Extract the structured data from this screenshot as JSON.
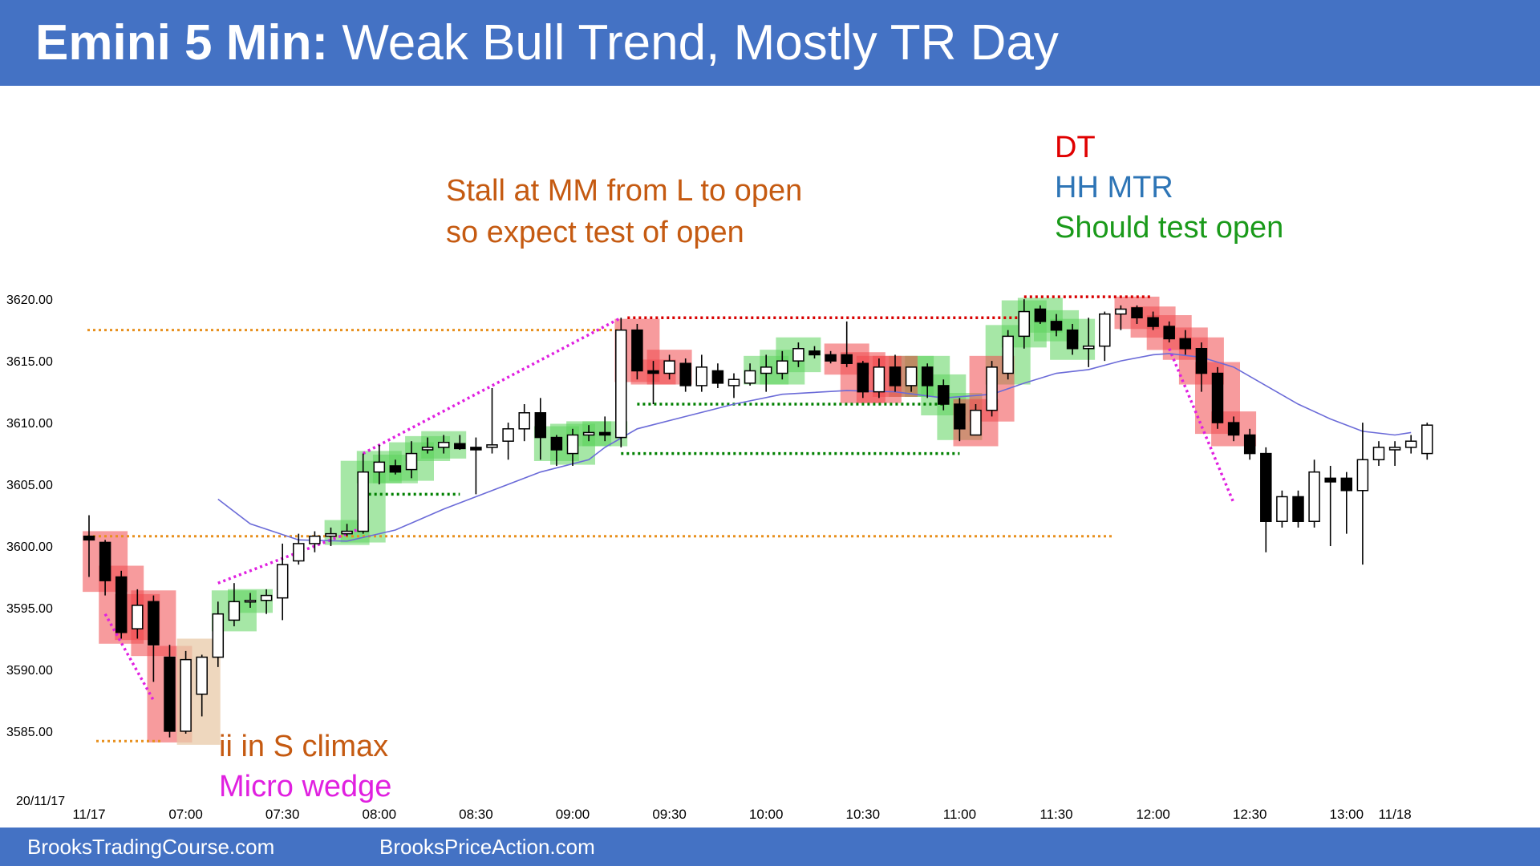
{
  "title": {
    "bold": "Emini 5 Min:",
    "rest": "Weak Bull Trend, Mostly TR Day"
  },
  "footer": {
    "left": "BrooksTradingCourse.com",
    "right": "BrooksPriceAction.com"
  },
  "colors": {
    "banner": "#4472C4",
    "bull_highlight": "#5CD35C",
    "bear_highlight": "#F0484C",
    "ema": "#6B6BD8",
    "level_line": "#E8901E",
    "trend_line": "#E020E0",
    "resistance": "#D80000",
    "support": "#008000"
  },
  "annotations": {
    "stall_line1": "Stall at MM from L to open",
    "stall_line2": "so expect test of open",
    "dt": "DT",
    "hh_mtr": "HH MTR",
    "should_test": "Should test open",
    "ii": "ii in S climax",
    "micro_wedge": "Micro wedge"
  },
  "chart_data": {
    "type": "candlestick",
    "symbol": "Emini",
    "timeframe": "5 Min",
    "date_label": "20/11/17",
    "ylim": [
      3583.5,
      3623.0
    ],
    "y_ticks": [
      "3585.00",
      "3590.00",
      "3595.00",
      "3600.00",
      "3605.00",
      "3610.00",
      "3615.00",
      "3620.00"
    ],
    "x_tick_labels": [
      "11/17",
      "07:00",
      "07:30",
      "08:00",
      "08:30",
      "09:00",
      "09:30",
      "10:00",
      "10:30",
      "11:00",
      "11:30",
      "12:00",
      "12:30",
      "13:00",
      "11/18"
    ],
    "x_tick_bars": [
      0,
      6,
      12,
      18,
      24,
      30,
      36,
      42,
      48,
      54,
      60,
      66,
      72,
      78,
      81
    ],
    "bars": [
      {
        "o": 3600.8,
        "h": 3602.5,
        "l": 3597.5,
        "c": 3600.5
      },
      {
        "o": 3600.3,
        "h": 3600.5,
        "l": 3596.0,
        "c": 3597.2
      },
      {
        "o": 3597.5,
        "h": 3598.0,
        "l": 3592.5,
        "c": 3593.0
      },
      {
        "o": 3593.3,
        "h": 3596.5,
        "l": 3592.5,
        "c": 3595.2
      },
      {
        "o": 3595.5,
        "h": 3596.0,
        "l": 3589.0,
        "c": 3592.0
      },
      {
        "o": 3591.0,
        "h": 3592.0,
        "l": 3584.5,
        "c": 3585.0
      },
      {
        "o": 3585.0,
        "h": 3591.5,
        "l": 3584.8,
        "c": 3590.8
      },
      {
        "o": 3588.0,
        "h": 3591.2,
        "l": 3586.2,
        "c": 3591.0
      },
      {
        "o": 3591.0,
        "h": 3595.5,
        "l": 3590.2,
        "c": 3594.5
      },
      {
        "o": 3594.0,
        "h": 3597.0,
        "l": 3593.5,
        "c": 3595.5
      },
      {
        "o": 3595.5,
        "h": 3596.2,
        "l": 3595.0,
        "c": 3595.6
      },
      {
        "o": 3595.6,
        "h": 3596.5,
        "l": 3594.5,
        "c": 3596.0
      },
      {
        "o": 3595.8,
        "h": 3600.2,
        "l": 3594.0,
        "c": 3598.5
      },
      {
        "o": 3598.8,
        "h": 3601.0,
        "l": 3598.5,
        "c": 3600.2
      },
      {
        "o": 3600.2,
        "h": 3601.2,
        "l": 3599.5,
        "c": 3600.8
      },
      {
        "o": 3600.8,
        "h": 3601.5,
        "l": 3600.0,
        "c": 3601.0
      },
      {
        "o": 3601.0,
        "h": 3601.8,
        "l": 3600.8,
        "c": 3601.2
      },
      {
        "o": 3601.2,
        "h": 3607.5,
        "l": 3601.0,
        "c": 3606.0
      },
      {
        "o": 3606.0,
        "h": 3608.2,
        "l": 3605.0,
        "c": 3606.8
      },
      {
        "o": 3606.5,
        "h": 3607.0,
        "l": 3605.8,
        "c": 3606.0
      },
      {
        "o": 3606.2,
        "h": 3608.5,
        "l": 3605.5,
        "c": 3607.5
      },
      {
        "o": 3607.8,
        "h": 3608.8,
        "l": 3607.5,
        "c": 3608.0
      },
      {
        "o": 3608.0,
        "h": 3609.0,
        "l": 3607.5,
        "c": 3608.4
      },
      {
        "o": 3608.3,
        "h": 3609.0,
        "l": 3607.8,
        "c": 3607.9
      },
      {
        "o": 3608.0,
        "h": 3608.8,
        "l": 3604.2,
        "c": 3607.8
      },
      {
        "o": 3608.0,
        "h": 3612.8,
        "l": 3607.5,
        "c": 3608.2
      },
      {
        "o": 3608.5,
        "h": 3610.0,
        "l": 3607.0,
        "c": 3609.5
      },
      {
        "o": 3609.5,
        "h": 3611.5,
        "l": 3608.5,
        "c": 3610.8
      },
      {
        "o": 3610.8,
        "h": 3612.0,
        "l": 3607.0,
        "c": 3608.8
      },
      {
        "o": 3608.8,
        "h": 3609.0,
        "l": 3606.5,
        "c": 3607.8
      },
      {
        "o": 3607.5,
        "h": 3609.5,
        "l": 3606.5,
        "c": 3609.0
      },
      {
        "o": 3609.0,
        "h": 3609.8,
        "l": 3608.5,
        "c": 3609.2
      },
      {
        "o": 3609.2,
        "h": 3610.5,
        "l": 3608.5,
        "c": 3609.0
      },
      {
        "o": 3608.8,
        "h": 3618.5,
        "l": 3608.0,
        "c": 3617.5
      },
      {
        "o": 3617.5,
        "h": 3618.0,
        "l": 3613.5,
        "c": 3614.2
      },
      {
        "o": 3614.2,
        "h": 3615.0,
        "l": 3611.5,
        "c": 3614.0
      },
      {
        "o": 3614.0,
        "h": 3615.5,
        "l": 3613.5,
        "c": 3615.0
      },
      {
        "o": 3614.8,
        "h": 3615.2,
        "l": 3612.5,
        "c": 3613.0
      },
      {
        "o": 3613.0,
        "h": 3615.5,
        "l": 3612.5,
        "c": 3614.5
      },
      {
        "o": 3614.2,
        "h": 3614.8,
        "l": 3612.8,
        "c": 3613.2
      },
      {
        "o": 3613.0,
        "h": 3614.0,
        "l": 3612.0,
        "c": 3613.5
      },
      {
        "o": 3613.2,
        "h": 3614.8,
        "l": 3613.0,
        "c": 3614.2
      },
      {
        "o": 3614.0,
        "h": 3615.5,
        "l": 3612.5,
        "c": 3614.5
      },
      {
        "o": 3614.0,
        "h": 3615.8,
        "l": 3613.5,
        "c": 3615.0
      },
      {
        "o": 3615.0,
        "h": 3616.5,
        "l": 3614.5,
        "c": 3616.0
      },
      {
        "o": 3615.8,
        "h": 3616.2,
        "l": 3615.2,
        "c": 3615.5
      },
      {
        "o": 3615.5,
        "h": 3615.8,
        "l": 3614.8,
        "c": 3615.0
      },
      {
        "o": 3615.5,
        "h": 3618.2,
        "l": 3614.5,
        "c": 3614.8
      },
      {
        "o": 3614.8,
        "h": 3615.0,
        "l": 3612.0,
        "c": 3612.5
      },
      {
        "o": 3612.5,
        "h": 3615.2,
        "l": 3612.0,
        "c": 3614.5
      },
      {
        "o": 3614.5,
        "h": 3615.5,
        "l": 3612.5,
        "c": 3613.0
      },
      {
        "o": 3613.0,
        "h": 3614.5,
        "l": 3612.5,
        "c": 3614.5
      },
      {
        "o": 3614.5,
        "h": 3614.8,
        "l": 3612.0,
        "c": 3613.0
      },
      {
        "o": 3613.0,
        "h": 3613.5,
        "l": 3611.0,
        "c": 3611.5
      },
      {
        "o": 3611.5,
        "h": 3612.0,
        "l": 3608.5,
        "c": 3609.5
      },
      {
        "o": 3609.0,
        "h": 3611.5,
        "l": 3609.0,
        "c": 3611.0
      },
      {
        "o": 3611.0,
        "h": 3615.0,
        "l": 3610.5,
        "c": 3614.5
      },
      {
        "o": 3614.0,
        "h": 3617.5,
        "l": 3613.5,
        "c": 3617.0
      },
      {
        "o": 3617.0,
        "h": 3620.0,
        "l": 3616.0,
        "c": 3619.0
      },
      {
        "o": 3619.2,
        "h": 3619.5,
        "l": 3618.0,
        "c": 3618.2
      },
      {
        "o": 3618.2,
        "h": 3618.8,
        "l": 3617.0,
        "c": 3617.5
      },
      {
        "o": 3617.5,
        "h": 3618.0,
        "l": 3615.5,
        "c": 3616.0
      },
      {
        "o": 3616.0,
        "h": 3618.5,
        "l": 3614.5,
        "c": 3616.2
      },
      {
        "o": 3616.2,
        "h": 3619.0,
        "l": 3615.0,
        "c": 3618.8
      },
      {
        "o": 3618.8,
        "h": 3619.5,
        "l": 3617.5,
        "c": 3619.2
      },
      {
        "o": 3619.3,
        "h": 3619.5,
        "l": 3618.0,
        "c": 3618.5
      },
      {
        "o": 3618.5,
        "h": 3619.0,
        "l": 3617.5,
        "c": 3617.8
      },
      {
        "o": 3617.8,
        "h": 3618.2,
        "l": 3616.5,
        "c": 3616.8
      },
      {
        "o": 3616.8,
        "h": 3617.5,
        "l": 3615.5,
        "c": 3616.0
      },
      {
        "o": 3616.0,
        "h": 3616.5,
        "l": 3612.5,
        "c": 3614.0
      },
      {
        "o": 3614.0,
        "h": 3614.5,
        "l": 3609.5,
        "c": 3610.0
      },
      {
        "o": 3610.0,
        "h": 3610.5,
        "l": 3608.5,
        "c": 3609.0
      },
      {
        "o": 3609.0,
        "h": 3609.5,
        "l": 3607.0,
        "c": 3607.5
      },
      {
        "o": 3607.5,
        "h": 3608.0,
        "l": 3599.5,
        "c": 3602.0
      },
      {
        "o": 3602.0,
        "h": 3604.5,
        "l": 3601.5,
        "c": 3604.0
      },
      {
        "o": 3604.0,
        "h": 3604.5,
        "l": 3601.5,
        "c": 3602.0
      },
      {
        "o": 3602.0,
        "h": 3607.0,
        "l": 3601.5,
        "c": 3606.0
      },
      {
        "o": 3605.5,
        "h": 3606.5,
        "l": 3600.0,
        "c": 3605.2
      },
      {
        "o": 3605.5,
        "h": 3606.0,
        "l": 3601.0,
        "c": 3604.5
      },
      {
        "o": 3604.5,
        "h": 3610.0,
        "l": 3598.5,
        "c": 3607.0
      },
      {
        "o": 3607.0,
        "h": 3608.5,
        "l": 3606.5,
        "c": 3608.0
      },
      {
        "o": 3607.8,
        "h": 3608.5,
        "l": 3606.5,
        "c": 3608.0
      },
      {
        "o": 3608.0,
        "h": 3609.0,
        "l": 3607.5,
        "c": 3608.5
      },
      {
        "o": 3607.5,
        "h": 3610.0,
        "l": 3607.0,
        "c": 3609.8
      }
    ],
    "ema": [
      [
        8,
        3603.8
      ],
      [
        10,
        3601.8
      ],
      [
        13,
        3600.5
      ],
      [
        16,
        3600.4
      ],
      [
        19,
        3601.3
      ],
      [
        22,
        3603.0
      ],
      [
        25,
        3604.5
      ],
      [
        28,
        3606.0
      ],
      [
        31,
        3607.0
      ],
      [
        32,
        3608.0
      ],
      [
        34,
        3609.5
      ],
      [
        37,
        3610.5
      ],
      [
        40,
        3611.5
      ],
      [
        43,
        3612.3
      ],
      [
        47,
        3612.6
      ],
      [
        50,
        3612.5
      ],
      [
        53,
        3612.0
      ],
      [
        56,
        3612.3
      ],
      [
        58,
        3613.2
      ],
      [
        60,
        3614.0
      ],
      [
        62,
        3614.3
      ],
      [
        64,
        3615.0
      ],
      [
        66,
        3615.5
      ],
      [
        67,
        3615.6
      ],
      [
        69,
        3615.3
      ],
      [
        71,
        3614.5
      ],
      [
        73,
        3613.0
      ],
      [
        75,
        3611.5
      ],
      [
        77,
        3610.3
      ],
      [
        79,
        3609.3
      ],
      [
        81,
        3609.0
      ],
      [
        82,
        3609.2
      ]
    ],
    "bull_highlights": [
      9,
      10,
      16,
      17,
      18,
      19,
      20,
      21,
      22,
      29,
      30,
      31,
      32,
      42,
      43,
      44,
      51,
      52,
      53,
      54,
      57,
      58,
      59,
      60,
      61
    ],
    "bear_highlights": [
      1,
      2,
      3,
      4,
      5,
      34,
      35,
      36,
      47,
      48,
      49,
      50,
      55,
      56,
      65,
      66,
      67,
      68,
      69,
      70,
      71
    ],
    "ii_bars": [
      6,
      7
    ],
    "levels": {
      "open": 3600.8,
      "low": 3584.2,
      "stall": 3617.5,
      "dt_high": 3620.2,
      "prior_high": 3618.5
    }
  }
}
